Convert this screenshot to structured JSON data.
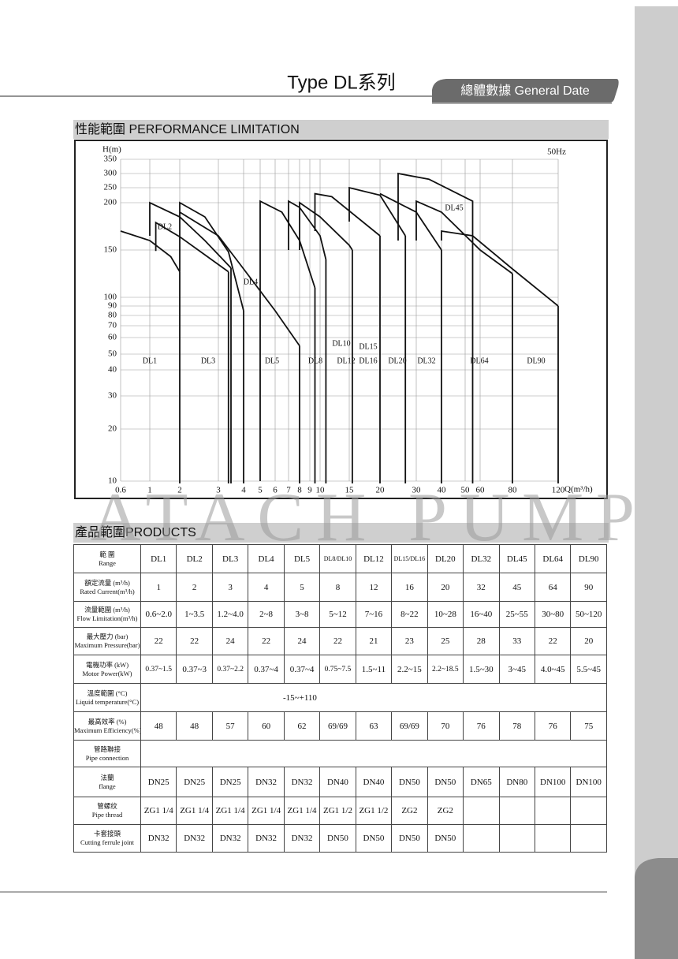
{
  "header": {
    "title": "Type DL系列",
    "tab": "總體數據 General Date"
  },
  "performance": {
    "section_title": "性能範圍 PERFORMANCE LIMITATION",
    "y_label": "H(m)",
    "x_label": "Q(m³/h)",
    "frequency": "50Hz",
    "xlim": [
      0.6,
      120
    ],
    "ylim": [
      10,
      350
    ],
    "xticks": [
      0.6,
      1,
      2,
      3,
      4,
      5,
      6,
      7,
      8,
      9,
      10,
      15,
      20,
      30,
      40,
      50,
      60,
      80,
      120
    ],
    "yticks": [
      10,
      20,
      30,
      40,
      50,
      60,
      70,
      80,
      90,
      100,
      150,
      200,
      250,
      300,
      350
    ],
    "curves": [
      {
        "q": [
          0.6,
          1,
          1.7,
          2
        ],
        "h": [
          170,
          160,
          143,
          127
        ]
      },
      {
        "q": [
          1,
          1,
          2,
          2.65,
          3.5
        ],
        "h": [
          165,
          200,
          185,
          160,
          131
        ]
      },
      {
        "q": [
          1.2,
          1.2,
          2,
          3.4
        ],
        "h": [
          149,
          179,
          164,
          127
        ]
      },
      {
        "q": [
          2,
          2,
          2.65,
          3.4,
          4
        ],
        "h": [
          127,
          200,
          185,
          148,
          85
        ]
      },
      {
        "q": [
          2,
          3,
          4,
          6,
          8
        ],
        "h": [
          190,
          165,
          130,
          85,
          55
        ]
      },
      {
        "q": [
          5,
          5,
          6.5,
          8,
          9.5
        ],
        "h": [
          10,
          205,
          190,
          160,
          110
        ]
      },
      {
        "q": [
          7,
          7,
          8,
          10,
          11
        ],
        "h": [
          150,
          205,
          195,
          165,
          140
        ]
      },
      {
        "q": [
          8,
          8,
          10,
          15,
          15.5
        ],
        "h": [
          150,
          200,
          185,
          155,
          150
        ]
      },
      {
        "q": [
          9.5,
          9.5,
          12,
          20
        ],
        "h": [
          170,
          230,
          220,
          165
        ]
      },
      {
        "q": [
          15,
          15,
          20,
          27
        ],
        "h": [
          180,
          250,
          225,
          165
        ]
      },
      {
        "q": [
          25,
          25,
          35,
          55,
          55
        ],
        "h": [
          160,
          300,
          280,
          205,
          170
        ]
      },
      {
        "q": [
          30,
          30,
          40,
          60,
          80
        ],
        "h": [
          160,
          205,
          190,
          150,
          125
        ]
      },
      {
        "q": [
          40,
          40,
          55,
          80,
          120
        ],
        "h": [
          160,
          170,
          165,
          130,
          90
        ]
      },
      {
        "q": [
          20,
          30,
          40
        ],
        "h": [
          230,
          190,
          150
        ]
      }
    ],
    "labels": [
      "DL1",
      "DL2",
      "DL3",
      "DL4",
      "DL5",
      "DL8",
      "DL10",
      "DL12",
      "DL15",
      "DL16",
      "DL20",
      "DL32",
      "DL45",
      "DL64",
      "DL90"
    ]
  },
  "watermark": "ATACH PUMP",
  "products": {
    "section_title": "產品範圍PRODUCTS",
    "rows": [
      {
        "label_zh": "範 圍",
        "label_en": "Range",
        "cells": [
          "DL1",
          "DL2",
          "DL3",
          "DL4",
          "DL5",
          "DL8/DL10",
          "DL12",
          "DL15/DL16",
          "DL20",
          "DL32",
          "DL45",
          "DL64",
          "DL90"
        ]
      },
      {
        "label_zh": "額定流量 (m³/h)",
        "label_en": "Rated Current(m³/h)",
        "cells": [
          "1",
          "2",
          "3",
          "4",
          "5",
          "8",
          "12",
          "16",
          "20",
          "32",
          "45",
          "64",
          "90"
        ]
      },
      {
        "label_zh": "流量範圍 (m³/h)",
        "label_en": "Flow Limitation(m³/h)",
        "cells": [
          "0.6~2.0",
          "1~3.5",
          "1.2~4.0",
          "2~8",
          "3~8",
          "5~12",
          "7~16",
          "8~22",
          "10~28",
          "16~40",
          "25~55",
          "30~80",
          "50~120"
        ]
      },
      {
        "label_zh": "最大壓力 (bar)",
        "label_en": "Maximum Pressure(bar)",
        "cells": [
          "22",
          "22",
          "24",
          "22",
          "24",
          "22",
          "21",
          "23",
          "25",
          "28",
          "33",
          "22",
          "20"
        ]
      },
      {
        "label_zh": "電機功率 (kW)",
        "label_en": "Motor Power(kW)",
        "cells": [
          "0.37~1.5",
          "0.37~3",
          "0.37~2.2",
          "0.37~4",
          "0.37~4",
          "0.75~7.5",
          "1.5~11",
          "2.2~15",
          "2.2~18.5",
          "1.5~30",
          "3~45",
          "4.0~45",
          "5.5~45"
        ]
      },
      {
        "label_zh": "溫度範圍 (°C)",
        "label_en": "Liquid temperature(°C)",
        "span": "-15~+110"
      },
      {
        "label_zh": "最高效率 (%)",
        "label_en": "Maximum Efficiency(%)",
        "cells": [
          "48",
          "48",
          "57",
          "60",
          "62",
          "69/69",
          "63",
          "69/69",
          "70",
          "76",
          "78",
          "76",
          "75"
        ]
      },
      {
        "label_zh": "管路聯接",
        "label_en": "Pipe connection"
      },
      {
        "label_zh": "法蘭",
        "label_en": "flange",
        "cells": [
          "DN25",
          "DN25",
          "DN25",
          "DN32",
          "DN32",
          "DN40",
          "DN40",
          "DN50",
          "DN50",
          "DN65",
          "DN80",
          "DN100",
          "DN100"
        ]
      },
      {
        "label_zh": "管螺纹",
        "label_en": "Pipe thread",
        "cells": [
          "ZG1 1/4",
          "ZG1 1/4",
          "ZG1 1/4",
          "ZG1 1/4",
          "ZG1 1/4",
          "ZG1 1/2",
          "ZG1 1/2",
          "ZG2",
          "ZG2"
        ]
      },
      {
        "label_zh": "卡套接頭",
        "label_en": "Cutting ferrule joint",
        "cells": [
          "DN32",
          "DN32",
          "DN32",
          "DN32",
          "DN32",
          "DN50",
          "DN50",
          "DN50",
          "DN50"
        ]
      }
    ]
  }
}
